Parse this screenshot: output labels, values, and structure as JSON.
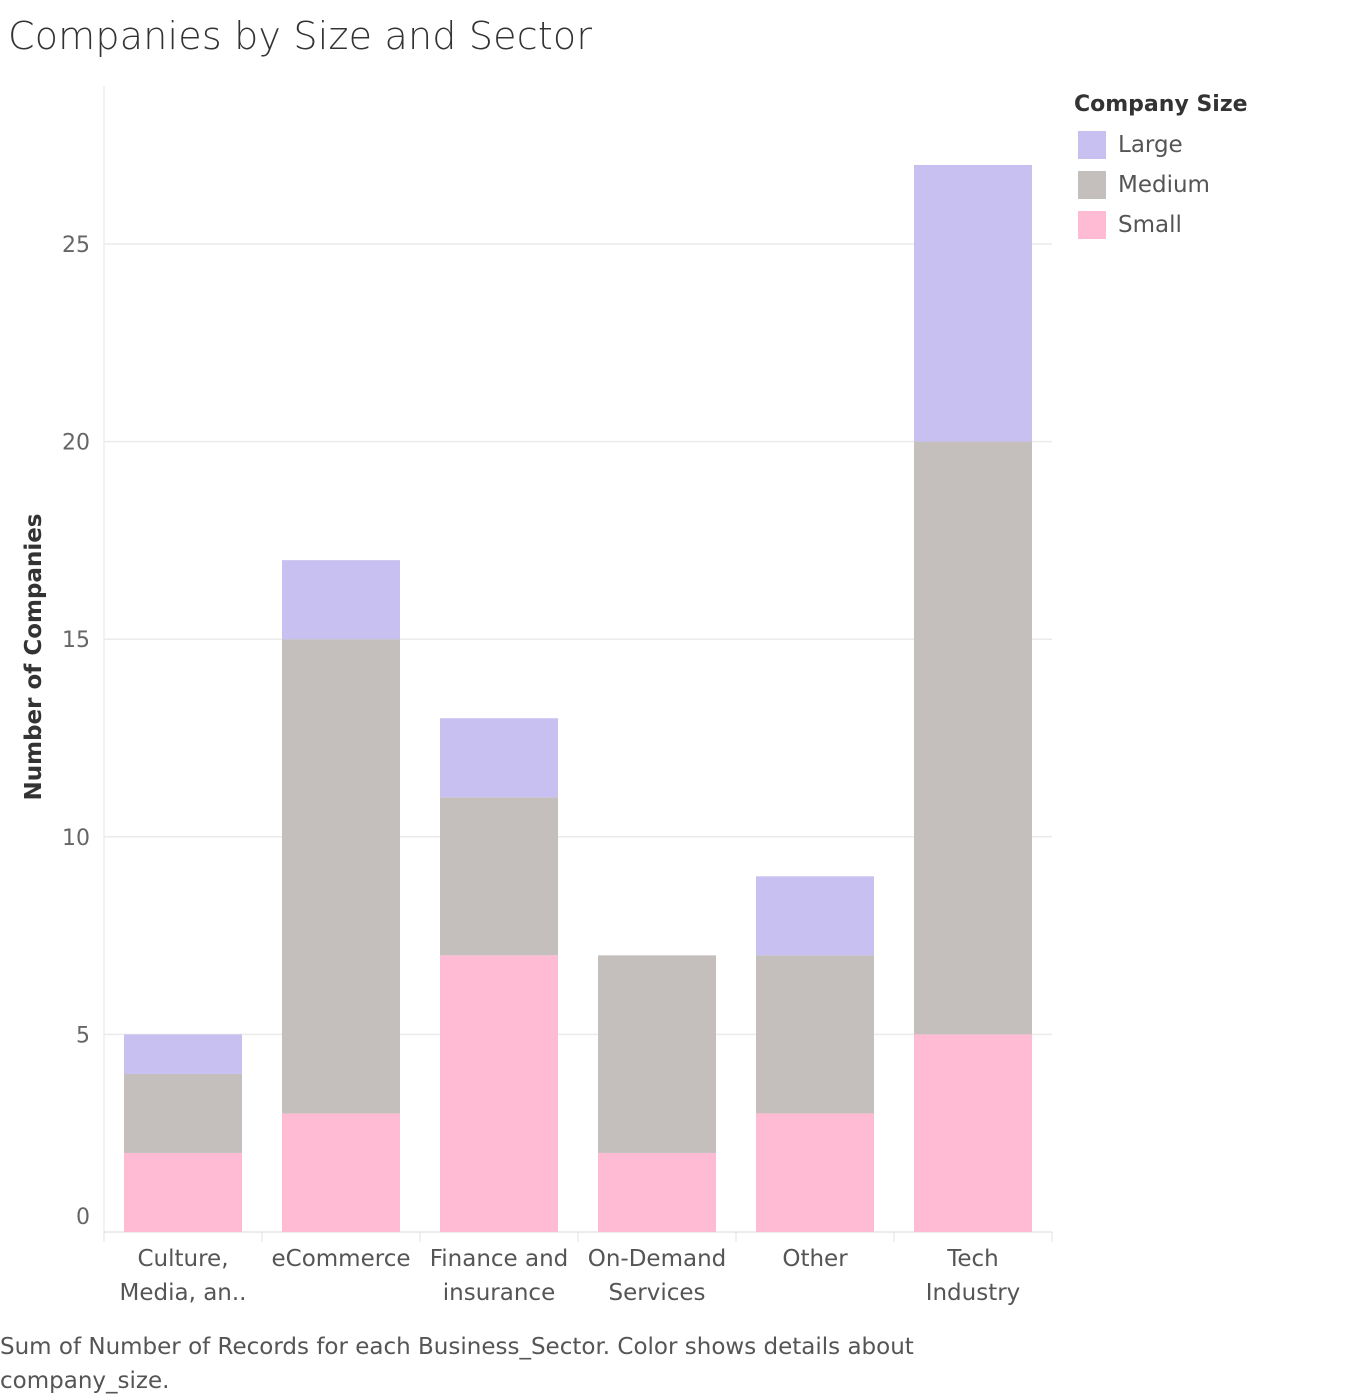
{
  "title": "Companies by Size and Sector",
  "caption": "Sum of Number of Records for each Business_Sector.  Color shows details about company_size.",
  "legend": {
    "title": "Company Size",
    "items": [
      {
        "label": "Large",
        "color": "#c7c0f0"
      },
      {
        "label": "Medium",
        "color": "#c4bfbc"
      },
      {
        "label": "Small",
        "color": "#ffbbd3"
      }
    ]
  },
  "chart_data": {
    "type": "bar",
    "stacked": true,
    "ylabel": "Number of Companies",
    "xlabel": "",
    "ylim": [
      0,
      27
    ],
    "yticks": [
      0,
      5,
      10,
      15,
      20,
      25
    ],
    "grid": true,
    "legend_position": "top-right",
    "categories": [
      [
        "Culture,",
        "Media, an.."
      ],
      [
        "eCommerce"
      ],
      [
        "Finance and",
        "insurance"
      ],
      [
        "On-Demand",
        "Services"
      ],
      [
        "Other"
      ],
      [
        "Tech",
        "Industry"
      ]
    ],
    "series": [
      {
        "name": "Small",
        "color": "#ffbbd3",
        "values": [
          2,
          3,
          7,
          2,
          3,
          5
        ]
      },
      {
        "name": "Medium",
        "color": "#c4bfbc",
        "values": [
          2,
          12,
          4,
          5,
          4,
          15
        ]
      },
      {
        "name": "Large",
        "color": "#c7c0f0",
        "values": [
          1,
          2,
          2,
          0,
          2,
          7
        ]
      }
    ]
  }
}
